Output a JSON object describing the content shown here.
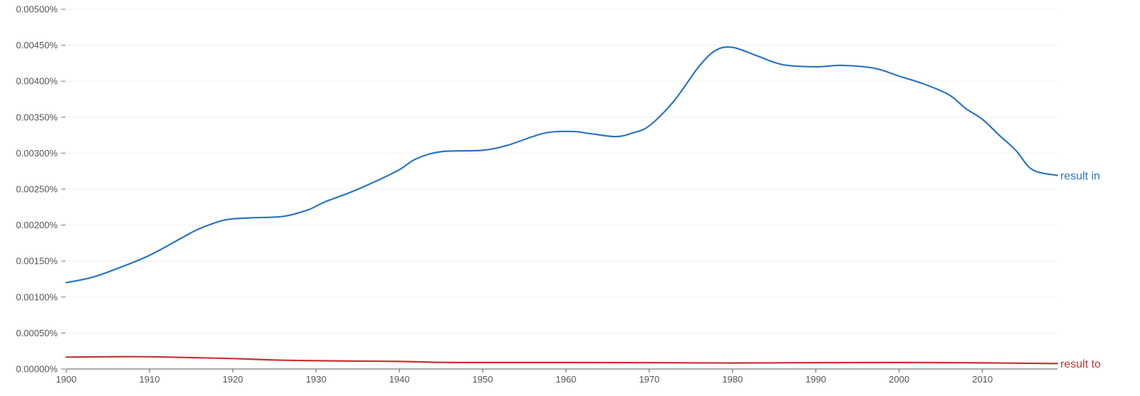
{
  "chart_data": {
    "type": "line",
    "x_range": [
      1900,
      2019
    ],
    "ylim": [
      0,
      0.005
    ],
    "grid": true,
    "x_ticks": [
      1900,
      1910,
      1920,
      1930,
      1940,
      1950,
      1960,
      1970,
      1980,
      1990,
      2000,
      2010
    ],
    "x_tick_labels": [
      "1900",
      "1910",
      "1920",
      "1930",
      "1940",
      "1950",
      "1960",
      "1970",
      "1980",
      "1990",
      "2000",
      "2010"
    ],
    "y_ticks": [
      0,
      0.0005,
      0.001,
      0.0015,
      0.002,
      0.0025,
      0.003,
      0.0035,
      0.004,
      0.0045,
      0.005
    ],
    "y_tick_labels": [
      "0.00000%",
      "0.00050%",
      "0.00100%",
      "0.00150%",
      "0.00200%",
      "0.00250%",
      "0.00300%",
      "0.00350%",
      "0.00400%",
      "0.00450%",
      "0.00500%"
    ],
    "series": [
      {
        "name": "result in",
        "color": "#2a75c8",
        "x": [
          1900,
          1903,
          1906,
          1910,
          1914,
          1916,
          1919,
          1922,
          1926,
          1929,
          1931,
          1934,
          1937,
          1940,
          1942,
          1945,
          1950,
          1953,
          1956,
          1958,
          1961,
          1963,
          1966,
          1968,
          1970,
          1973,
          1976,
          1978,
          1980,
          1983,
          1986,
          1990,
          1993,
          1997,
          2000,
          2003,
          2006,
          2008,
          2010,
          2012,
          2014,
          2016,
          2019
        ],
        "y": [
          0.0012,
          0.00127,
          0.00139,
          0.00158,
          0.00183,
          0.00195,
          0.00207,
          0.0021,
          0.00212,
          0.00221,
          0.00232,
          0.00245,
          0.0026,
          0.00277,
          0.00292,
          0.00302,
          0.00304,
          0.00311,
          0.00323,
          0.00329,
          0.0033,
          0.00327,
          0.00323,
          0.00328,
          0.00338,
          0.00373,
          0.00421,
          0.00443,
          0.00447,
          0.00435,
          0.00423,
          0.0042,
          0.00422,
          0.00418,
          0.00407,
          0.00396,
          0.00381,
          0.00362,
          0.00347,
          0.00325,
          0.00304,
          0.00277,
          0.00269
        ]
      },
      {
        "name": "result to",
        "color": "#c83232",
        "x": [
          1900,
          1905,
          1910,
          1915,
          1920,
          1925,
          1930,
          1935,
          1940,
          1945,
          1950,
          1960,
          1970,
          1980,
          1990,
          2000,
          2010,
          2019
        ],
        "y": [
          0.000165,
          0.00017,
          0.00017,
          0.000158,
          0.000145,
          0.000125,
          0.000115,
          0.00011,
          0.000105,
          9.2e-05,
          9e-05,
          9e-05,
          8.8e-05,
          8.3e-05,
          8.8e-05,
          9e-05,
          8.5e-05,
          7.5e-05
        ]
      }
    ]
  }
}
